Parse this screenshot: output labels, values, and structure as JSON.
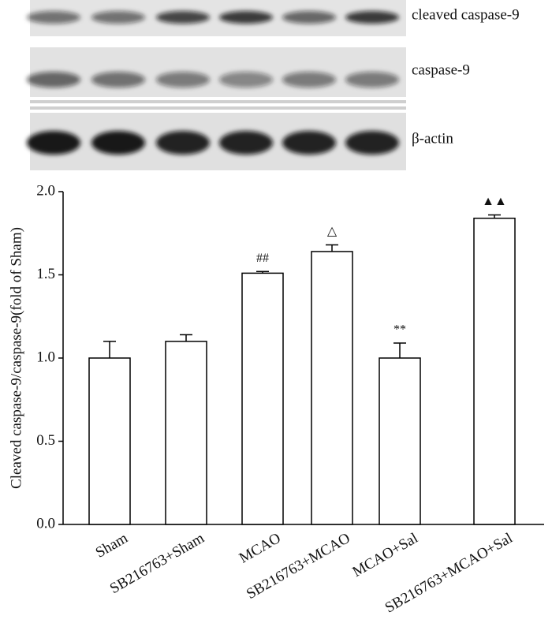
{
  "blot_labels": [
    "cleaved caspase-9",
    "caspase-9",
    "β-actin"
  ],
  "chart_data": {
    "type": "bar",
    "ylabel": "Cleaved caspase-9/caspase-9(fold of Sham)",
    "categories": [
      "Sham",
      "SB216763+Sham",
      "MCAO",
      "SB216763+MCAO",
      "MCAO+Sal",
      "SB216763+MCAO+Sal"
    ],
    "values": [
      1.0,
      1.1,
      1.51,
      1.64,
      1.0,
      1.84
    ],
    "errors": [
      0.1,
      0.04,
      0.01,
      0.04,
      0.09,
      0.02
    ],
    "annotations": [
      null,
      null,
      "##",
      "△",
      "**",
      "▲▲"
    ],
    "color": "#ffffff",
    "ylim": [
      0,
      2
    ],
    "yticks": [
      {
        "value": 0,
        "label": "0.0"
      },
      0.5,
      {
        "value": 1,
        "label": "1.0"
      },
      1.5,
      {
        "value": 2,
        "label": "2.0"
      }
    ]
  }
}
